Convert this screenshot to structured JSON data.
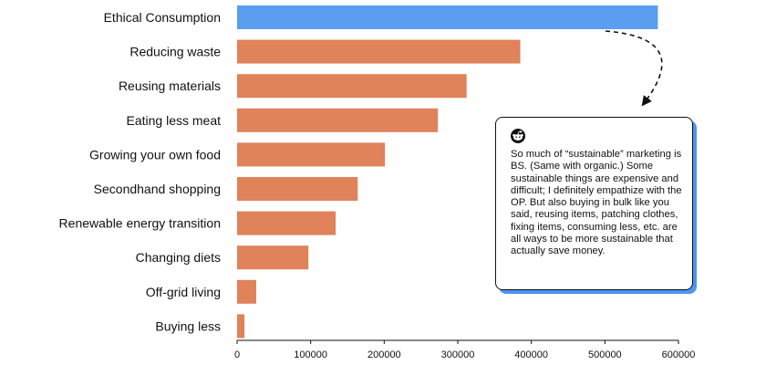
{
  "chart_data": {
    "type": "bar",
    "orientation": "horizontal",
    "title": "",
    "xlabel": "",
    "ylabel": "",
    "categories": [
      "Ethical Consumption",
      "Reducing waste",
      "Reusing materials",
      "Eating less meat",
      "Growing your own food",
      "Secondhand shopping",
      "Renewable energy transition",
      "Changing diets",
      "Off-grid living",
      "Buying less"
    ],
    "values": [
      572000,
      385000,
      312000,
      273000,
      201000,
      164000,
      134000,
      97000,
      26000,
      10000
    ],
    "xlim": [
      0,
      600000
    ],
    "xticks": [
      "0",
      "100000",
      "200000",
      "300000",
      "400000",
      "500000",
      "600000"
    ],
    "grid": false,
    "highlight_index": 0,
    "colors": {
      "highlight": "#5b9ef0",
      "default": "#e0825a",
      "shadow": "#4c94ee",
      "text": "#111111"
    }
  },
  "callout": {
    "icon": "reddit-icon",
    "text": "So much of “sustainable” marketing is BS. (Same with organic.) Some sustainable things are expensive and difficult; I definitely empathize with the OP. But also buying in bulk like you said, reusing items, patching clothes, fixing items, consuming less, etc. are all ways to be more sustainable that actually save money."
  }
}
